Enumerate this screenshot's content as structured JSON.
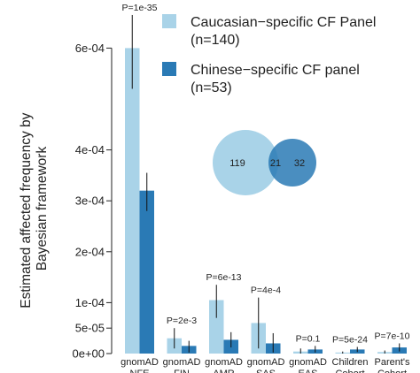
{
  "chart_data": {
    "type": "bar",
    "ylabel": "Estimated affected frequency by\nBayesian framework",
    "yticks": [
      {
        "value": 0,
        "label": "0e+00"
      },
      {
        "value": 5e-05,
        "label": "5e-05"
      },
      {
        "value": 0.0001,
        "label": "1e-04"
      },
      {
        "value": 0.0002,
        "label": "2e-04"
      },
      {
        "value": 0.0003,
        "label": "3e-04"
      },
      {
        "value": 0.0004,
        "label": "4e-04"
      },
      {
        "value": 0.0006,
        "label": "6e-04"
      }
    ],
    "ylim": [
      0,
      0.000625
    ],
    "categories": [
      {
        "line1": "gnomAD",
        "line2": "NFE"
      },
      {
        "line1": "gnomAD",
        "line2": "FIN"
      },
      {
        "line1": "gnomAD",
        "line2": "AMR"
      },
      {
        "line1": "gnomAD",
        "line2": "SAS"
      },
      {
        "line1": "gnomAD",
        "line2": "EAS"
      },
      {
        "line1": "Children",
        "line2": "Cohort"
      },
      {
        "line1": "Parent's",
        "line2": "Cohort"
      }
    ],
    "p_values": [
      "P=1e-35",
      "P=2e-3",
      "P=6e-13",
      "P=4e-4",
      "P=0.1",
      "P=5e-24",
      "P=7e-10"
    ],
    "series": [
      {
        "name": "Caucasian−specific CF Panel",
        "count": "(n=140)",
        "color": "#a9d3e8",
        "values": [
          0.0006,
          3e-05,
          0.000105,
          6e-05,
          4e-06,
          2e-06,
          3e-06
        ],
        "err_low": [
          0.00052,
          1e-05,
          7e-05,
          1e-05,
          0.0,
          0.0,
          0.0
        ],
        "err_high": [
          0.000665,
          5e-05,
          0.000135,
          0.00011,
          1e-05,
          4e-06,
          6e-06
        ]
      },
      {
        "name": "Chinese−specific CF panel",
        "count": "(n=53)",
        "color": "#2a7ab5",
        "values": [
          0.00032,
          1.5e-05,
          2.7e-05,
          2e-05,
          8e-06,
          8e-06,
          1.2e-05
        ],
        "err_low": [
          0.00028,
          2e-06,
          1.2e-05,
          2e-06,
          2e-06,
          3e-06,
          4e-06
        ],
        "err_high": [
          0.000355,
          2.5e-05,
          4.2e-05,
          4e-05,
          1.5e-05,
          1.3e-05,
          2e-05
        ]
      }
    ],
    "venn": {
      "left_only": "119",
      "overlap": "21",
      "right_only": "32"
    },
    "grid": false,
    "legend_position": "top-right"
  }
}
